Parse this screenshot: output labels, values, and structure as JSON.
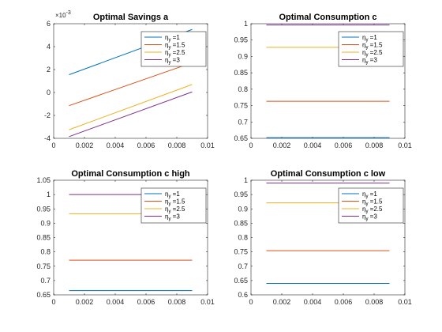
{
  "chart_data": [
    {
      "type": "line",
      "title": "Optimal Savings a",
      "xlabel": "",
      "ylabel": "",
      "xlim": [
        0,
        0.01
      ],
      "ylim": [
        -4,
        6
      ],
      "xticks": [
        0,
        0.002,
        0.004,
        0.006,
        0.008,
        0.01
      ],
      "xtick_labels": [
        "0",
        "0.002",
        "0.004",
        "0.006",
        "0.008",
        "0.01"
      ],
      "yticks": [
        -4,
        -2,
        0,
        2,
        4,
        6
      ],
      "ytick_labels": [
        "-4",
        "-2",
        "0",
        "2",
        "4",
        "6"
      ],
      "y_multiplier": "×10",
      "y_multiplier_exp": "-3",
      "grid": false,
      "legend_position": "top-right",
      "series": [
        {
          "name": "η",
          "sub": "y",
          "suffix": " =1",
          "color": "#0072BD",
          "x": [
            0.001,
            0.009
          ],
          "y": [
            1.55,
            5.5
          ]
        },
        {
          "name": "η",
          "sub": "y",
          "suffix": " =1.5",
          "color": "#D95319",
          "x": [
            0.001,
            0.009
          ],
          "y": [
            -1.15,
            2.6
          ]
        },
        {
          "name": "η",
          "sub": "y",
          "suffix": " =2.5",
          "color": "#EDB120",
          "x": [
            0.001,
            0.009
          ],
          "y": [
            -3.25,
            0.7
          ]
        },
        {
          "name": "η",
          "sub": "y",
          "suffix": " =3",
          "color": "#7E2F8E",
          "x": [
            0.001,
            0.009
          ],
          "y": [
            -3.85,
            0.05
          ]
        }
      ]
    },
    {
      "type": "line",
      "title": "Optimal Consumption c",
      "xlabel": "",
      "ylabel": "",
      "xlim": [
        0,
        0.01
      ],
      "ylim": [
        0.65,
        1
      ],
      "xticks": [
        0,
        0.002,
        0.004,
        0.006,
        0.008,
        0.01
      ],
      "xtick_labels": [
        "0",
        "0.002",
        "0.004",
        "0.006",
        "0.008",
        "0.01"
      ],
      "yticks": [
        0.65,
        0.7,
        0.75,
        0.8,
        0.85,
        0.9,
        0.95,
        1
      ],
      "ytick_labels": [
        "0.65",
        "0.7",
        "0.75",
        "0.8",
        "0.85",
        "0.9",
        "0.95",
        "1"
      ],
      "grid": false,
      "legend_position": "top-right",
      "series": [
        {
          "name": "η",
          "sub": "y",
          "suffix": " =1",
          "color": "#0072BD",
          "x": [
            0.001,
            0.009
          ],
          "y": [
            0.652,
            0.652
          ]
        },
        {
          "name": "η",
          "sub": "y",
          "suffix": " =1.5",
          "color": "#D95319",
          "x": [
            0.001,
            0.009
          ],
          "y": [
            0.763,
            0.763
          ]
        },
        {
          "name": "η",
          "sub": "y",
          "suffix": " =2.5",
          "color": "#EDB120",
          "x": [
            0.001,
            0.009
          ],
          "y": [
            0.928,
            0.928
          ]
        },
        {
          "name": "η",
          "sub": "y",
          "suffix": " =3",
          "color": "#7E2F8E",
          "x": [
            0.001,
            0.009
          ],
          "y": [
            0.996,
            0.996
          ]
        }
      ]
    },
    {
      "type": "line",
      "title": "Optimal Consumption c high",
      "xlabel": "",
      "ylabel": "",
      "xlim": [
        0,
        0.01
      ],
      "ylim": [
        0.65,
        1.05
      ],
      "xticks": [
        0,
        0.002,
        0.004,
        0.006,
        0.008,
        0.01
      ],
      "xtick_labels": [
        "0",
        "0.002",
        "0.004",
        "0.006",
        "0.008",
        "0.01"
      ],
      "yticks": [
        0.65,
        0.7,
        0.75,
        0.8,
        0.85,
        0.9,
        0.95,
        1,
        1.05
      ],
      "ytick_labels": [
        "0.65",
        "0.7",
        "0.75",
        "0.8",
        "0.85",
        "0.9",
        "0.95",
        "1",
        "1.05"
      ],
      "grid": false,
      "legend_position": "top-right",
      "series": [
        {
          "name": "η",
          "sub": "y",
          "suffix": " =1",
          "color": "#0072BD",
          "x": [
            0.001,
            0.009
          ],
          "y": [
            0.665,
            0.665
          ]
        },
        {
          "name": "η",
          "sub": "y",
          "suffix": " =1.5",
          "color": "#D95319",
          "x": [
            0.001,
            0.009
          ],
          "y": [
            0.771,
            0.771
          ]
        },
        {
          "name": "η",
          "sub": "y",
          "suffix": " =2.5",
          "color": "#EDB120",
          "x": [
            0.001,
            0.009
          ],
          "y": [
            0.933,
            0.933
          ]
        },
        {
          "name": "η",
          "sub": "y",
          "suffix": " =3",
          "color": "#7E2F8E",
          "x": [
            0.001,
            0.009
          ],
          "y": [
            1.0,
            1.0
          ]
        }
      ]
    },
    {
      "type": "line",
      "title": "Optimal Consumption c low",
      "xlabel": "",
      "ylabel": "",
      "xlim": [
        0,
        0.01
      ],
      "ylim": [
        0.6,
        1
      ],
      "xticks": [
        0,
        0.002,
        0.004,
        0.006,
        0.008,
        0.01
      ],
      "xtick_labels": [
        "0",
        "0.002",
        "0.004",
        "0.006",
        "0.008",
        "0.01"
      ],
      "yticks": [
        0.6,
        0.65,
        0.7,
        0.75,
        0.8,
        0.85,
        0.9,
        0.95,
        1
      ],
      "ytick_labels": [
        "0.6",
        "0.65",
        "0.7",
        "0.75",
        "0.8",
        "0.85",
        "0.9",
        "0.95",
        "1"
      ],
      "grid": false,
      "legend_position": "top-right",
      "series": [
        {
          "name": "η",
          "sub": "y",
          "suffix": " =1",
          "color": "#0072BD",
          "x": [
            0.001,
            0.009
          ],
          "y": [
            0.64,
            0.64
          ]
        },
        {
          "name": "η",
          "sub": "y",
          "suffix": " =1.5",
          "color": "#D95319",
          "x": [
            0.001,
            0.009
          ],
          "y": [
            0.754,
            0.754
          ]
        },
        {
          "name": "η",
          "sub": "y",
          "suffix": " =2.5",
          "color": "#EDB120",
          "x": [
            0.001,
            0.009
          ],
          "y": [
            0.921,
            0.921
          ]
        },
        {
          "name": "η",
          "sub": "y",
          "suffix": " =3",
          "color": "#7E2F8E",
          "x": [
            0.001,
            0.009
          ],
          "y": [
            0.99,
            0.99
          ]
        }
      ]
    }
  ]
}
